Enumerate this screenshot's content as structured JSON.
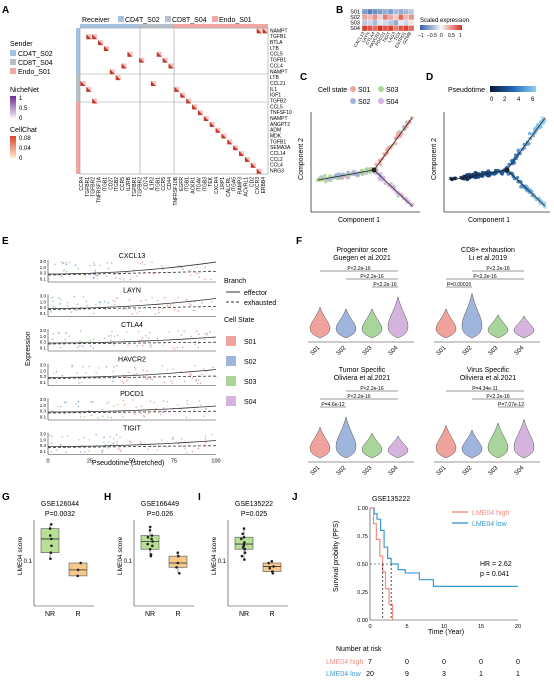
{
  "panels": {
    "A": "A",
    "B": "B",
    "C": "C",
    "D": "D",
    "E": "E",
    "F": "F",
    "G": "G",
    "H": "H",
    "I": "I",
    "J": "J"
  },
  "colors": {
    "s01": "#f0a39c",
    "s02": "#9fb5dc",
    "s03": "#a9d49b",
    "s04": "#d4b4dd",
    "cd4": "#a5c3e1",
    "cd8": "#b9bfc8",
    "endo": "#f1a7a3",
    "green_box": "#b9df97",
    "orange_box": "#f5c88b",
    "lme_high": "#f08e80",
    "lme_low": "#3a9ad6"
  },
  "panelA": {
    "receiver_title": "Receiver",
    "receiver_items": [
      "CD4T_S02",
      "CD8T_S04",
      "Endo_S01"
    ],
    "sender_title": "Sender",
    "sender_items": [
      "CD4T_S02",
      "CD8T_S04",
      "Endo_S01"
    ],
    "nichenet_title": "NicheNet",
    "nichenet_ticks": [
      "1",
      "0.5",
      "0"
    ],
    "cellchat_title": "CellChat",
    "cellchat_ticks": [
      "0.08",
      "0.04",
      "0"
    ],
    "ligands": [
      "NAMPT",
      "TGFB1",
      "BTLA",
      "LTB",
      "CCL5",
      "TGFB1",
      "CCL4",
      "NAMPT",
      "LTB",
      "CCL21",
      "IL1",
      "IGF1",
      "TGFB2",
      "CCL5",
      "TNFSF10",
      "NAMPT",
      "ANGPT2",
      "ADM",
      "MDK",
      "TGFB1",
      "SEMA3A",
      "CCL14",
      "CCL2",
      "CCL4",
      "NRG3"
    ],
    "receptors": [
      "CCR4",
      "TGFBR1",
      "TGFBR2",
      "TNFRSF1A",
      "ITGB1",
      "CD27",
      "ITGB2",
      "CCR5",
      "IL2RB",
      "TGFBR1",
      "TGFBR2",
      "CD74",
      "IL1R2",
      "ITGB1",
      "CCR5",
      "CD44",
      "TNFRSF10B",
      "EGFR",
      "ITGB1",
      "ACKR1",
      "ITGAV",
      "ITGB3",
      "TEK",
      "CXCR4",
      "LRP1",
      "CALCRL",
      "ITGA5",
      "RAMP3",
      "ACVRL1",
      "CD2",
      "CXCR3",
      "ERBB4"
    ],
    "dots": [
      [
        0,
        30
      ],
      [
        0,
        31
      ],
      [
        1,
        1
      ],
      [
        1,
        2
      ],
      [
        2,
        3
      ],
      [
        3,
        4
      ],
      [
        4,
        8
      ],
      [
        5,
        10
      ],
      [
        6,
        7
      ],
      [
        7,
        5
      ],
      [
        8,
        6
      ],
      [
        4,
        13
      ],
      [
        5,
        14
      ],
      [
        6,
        15
      ],
      [
        9,
        12
      ],
      [
        10,
        16
      ],
      [
        11,
        17
      ],
      [
        12,
        18
      ],
      [
        13,
        19
      ],
      [
        14,
        20
      ],
      [
        15,
        21
      ],
      [
        16,
        22
      ],
      [
        17,
        23
      ],
      [
        18,
        24
      ],
      [
        19,
        25
      ],
      [
        20,
        26
      ],
      [
        21,
        27
      ],
      [
        22,
        28
      ],
      [
        23,
        29
      ],
      [
        24,
        30
      ],
      [
        9,
        0
      ],
      [
        10,
        1
      ],
      [
        12,
        2
      ]
    ]
  },
  "panelB": {
    "rows": [
      "S01",
      "S02",
      "S03",
      "S04"
    ],
    "cols": [
      "CXCL13",
      "LAYN",
      "CTLA4",
      "HAVCR2",
      "PDCD1",
      "TIGIT",
      "LAG3",
      "TOX",
      "ENTPD1",
      "GZMB"
    ],
    "values": [
      [
        -0.6,
        -0.8,
        -0.7,
        -0.6,
        -0.5,
        -0.6,
        -0.4,
        -0.5,
        -0.4,
        -0.3
      ],
      [
        0.4,
        0.3,
        0.5,
        0.2,
        0.6,
        0.4,
        0.2,
        0.7,
        0.3,
        0.5
      ],
      [
        -0.3,
        -0.2,
        -0.4,
        -0.1,
        -0.2,
        -0.3,
        -0.5,
        -0.1,
        -0.2,
        0.1
      ],
      [
        0.9,
        0.8,
        0.7,
        1.0,
        0.8,
        0.9,
        0.6,
        0.8,
        0.9,
        0.7
      ]
    ],
    "legend_title": "Scaled expression",
    "legend_ticks": [
      "−1",
      "−0.5",
      "0",
      "0.5",
      "1"
    ]
  },
  "panelC": {
    "title": "Cell state",
    "items": [
      "S01",
      "S02",
      "S03",
      "S04"
    ],
    "xlabel": "Component 1",
    "ylabel": "Component 2"
  },
  "panelD": {
    "title": "Pseudotime",
    "ticks": [
      "0",
      "2",
      "4",
      "6"
    ],
    "xlabel": "Component 1",
    "ylabel": "Component 2"
  },
  "panelE": {
    "genes": [
      "CXCL13",
      "LAYN",
      "CTLA4",
      "HAVCR2",
      "PDCD1",
      "TIGIT"
    ],
    "yticks": [
      "3.0",
      "1.0",
      "0.3",
      "0.1"
    ],
    "xticks": [
      "0",
      "25",
      "50",
      "75",
      "100"
    ],
    "xlabel": "Pseudotime (stretched)",
    "ylabel": "Expression",
    "branch_title": "Branch",
    "branch_items": [
      "effector",
      "exhausted"
    ],
    "cellstate_title": "Cell State",
    "cellstate_items": [
      "S01",
      "S02",
      "S03",
      "S04"
    ]
  },
  "panelF": {
    "cats": [
      "S01",
      "S02",
      "S03",
      "S04"
    ],
    "plots": [
      {
        "title": "Progenitor score",
        "subtitle": "Guegen et al.2021",
        "pvals": [
          "P<2.2e-16",
          "P<2.2e-16",
          "P<2.2e-16"
        ]
      },
      {
        "title": "CD8+ exhaustion",
        "subtitle": "Li et al.2019",
        "pvals": [
          "P<2.2e-16",
          "P<2.2e-16",
          "P=0.00015"
        ]
      },
      {
        "title": "Tumor Specific",
        "subtitle": "Oliviera et al.2021",
        "pvals": [
          "P<2.2e-16",
          "P<2.2e-16",
          "P=4.6e-12"
        ]
      },
      {
        "title": "Virus Specific",
        "subtitle": "Oliviera et al.2021",
        "pvals": [
          "P=4.34e-11",
          "P<2.2e-16",
          "P=7.07e-12"
        ]
      }
    ]
  },
  "panelG": {
    "title": "GSE126044",
    "pval": "P=0.0032",
    "ylabel": "LME04 score",
    "yticks": [
      "0.1"
    ],
    "cats": [
      "NR",
      "R"
    ]
  },
  "panelH": {
    "title": "GSE166449",
    "pval": "P=0.026",
    "ylabel": "LME04 score",
    "yticks": [
      "0.1"
    ],
    "cats": [
      "NR",
      "R"
    ]
  },
  "panelI": {
    "title": "GSE135222",
    "pval": "P=0.025",
    "ylabel": "LME04 score",
    "yticks": [
      "0.1"
    ],
    "cats": [
      "NR",
      "R"
    ]
  },
  "panelJ": {
    "title": "GSE135222",
    "legend": [
      "LME04 high",
      "LME04 low"
    ],
    "hr": "HR = 2.62",
    "p": "p = 0.041",
    "ylabel": "Survival probility (PFS)",
    "xlabel": "Time (Year)",
    "yticks": [
      "1.00",
      "0.75",
      "0.50",
      "0.25",
      "0.00"
    ],
    "xticks": [
      "0",
      "5",
      "10",
      "15",
      "20"
    ],
    "risk_title": "Number at risk",
    "risk_labels": [
      "LME04 high",
      "LME04 low"
    ],
    "risk_high": [
      "7",
      "0",
      "0",
      "0",
      "0"
    ],
    "risk_low": [
      "20",
      "9",
      "3",
      "1",
      "1"
    ]
  }
}
